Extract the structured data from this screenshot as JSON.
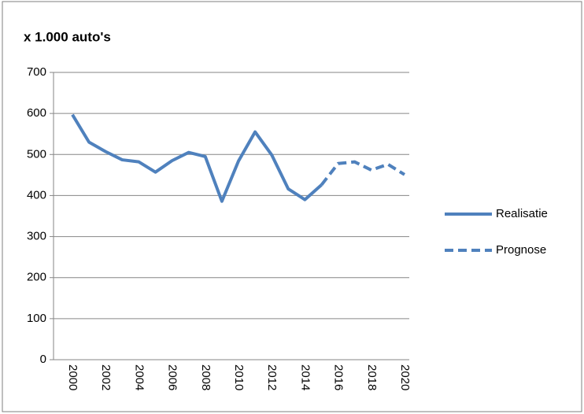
{
  "chart_data": {
    "type": "line",
    "title": "x 1.000 auto's",
    "categories": [
      "2000",
      null,
      "2002",
      null,
      "2004",
      null,
      "2006",
      null,
      "2008",
      null,
      "2010",
      null,
      "2012",
      null,
      "2014",
      null,
      "2016",
      null,
      "2018",
      null,
      "2020"
    ],
    "series": [
      {
        "name": "Realisatie",
        "color": "#4f81bd",
        "dashed": false,
        "values": [
          597,
          530,
          507,
          487,
          482,
          457,
          485,
          505,
          495,
          386,
          484,
          555,
          499,
          416,
          390,
          426,
          null,
          null,
          null,
          null,
          null
        ]
      },
      {
        "name": "Prognose",
        "color": "#4f81bd",
        "dashed": true,
        "values": [
          null,
          null,
          null,
          null,
          null,
          null,
          null,
          null,
          null,
          null,
          null,
          null,
          null,
          null,
          null,
          426,
          478,
          482,
          462,
          476,
          451
        ]
      }
    ],
    "ylim": [
      0,
      700
    ],
    "yticks": [
      0,
      100,
      200,
      300,
      400,
      500,
      600,
      700
    ],
    "grid": true,
    "legend": "right"
  }
}
